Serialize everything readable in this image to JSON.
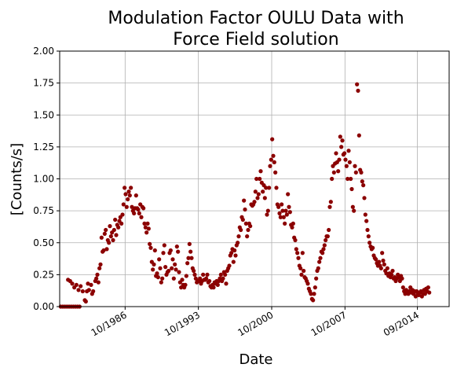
{
  "chart_data": {
    "type": "scatter",
    "title_lines": [
      "Modulation Factor OULU Data with",
      "Force Field solution"
    ],
    "xlabel": "Date",
    "ylabel": "[Counts/s]",
    "x_unit": "year",
    "xlim": [
      1980.5,
      2017.7
    ],
    "ylim": [
      0,
      2.0
    ],
    "grid": true,
    "marker_color": "#8b0000",
    "x_ticks": [
      {
        "value": 1986.75,
        "label": "10/1986"
      },
      {
        "value": 1993.75,
        "label": "10/1993"
      },
      {
        "value": 2000.75,
        "label": "10/2000"
      },
      {
        "value": 2007.75,
        "label": "10/2007"
      },
      {
        "value": 2014.67,
        "label": "09/2014"
      }
    ],
    "y_ticks": [
      {
        "value": 0.0,
        "label": "0.00"
      },
      {
        "value": 0.25,
        "label": "0.25"
      },
      {
        "value": 0.5,
        "label": "0.50"
      },
      {
        "value": 0.75,
        "label": "0.75"
      },
      {
        "value": 1.0,
        "label": "1.00"
      },
      {
        "value": 1.25,
        "label": "1.25"
      },
      {
        "value": 1.5,
        "label": "1.50"
      },
      {
        "value": 1.75,
        "label": "1.75"
      },
      {
        "value": 2.0,
        "label": "2.00"
      }
    ],
    "points": [
      [
        1980.6,
        0.0
      ],
      [
        1980.8,
        0.0
      ],
      [
        1981.0,
        0.0
      ],
      [
        1981.2,
        0.0
      ],
      [
        1981.4,
        0.0
      ],
      [
        1981.6,
        0.0
      ],
      [
        1981.8,
        0.0
      ],
      [
        1982.0,
        0.0
      ],
      [
        1982.2,
        0.0
      ],
      [
        1982.4,
        0.0
      ],
      [
        1981.3,
        0.21
      ],
      [
        1981.5,
        0.2
      ],
      [
        1981.7,
        0.18
      ],
      [
        1981.9,
        0.15
      ],
      [
        1982.1,
        0.17
      ],
      [
        1982.3,
        0.13
      ],
      [
        1982.5,
        0.16
      ],
      [
        1982.7,
        0.12
      ],
      [
        1982.9,
        0.05
      ],
      [
        1983.0,
        0.04
      ],
      [
        1983.1,
        0.12
      ],
      [
        1983.2,
        0.18
      ],
      [
        1983.3,
        0.13
      ],
      [
        1983.5,
        0.17
      ],
      [
        1983.6,
        0.1
      ],
      [
        1983.7,
        0.12
      ],
      [
        1983.9,
        0.2
      ],
      [
        1984.0,
        0.22
      ],
      [
        1984.1,
        0.25
      ],
      [
        1984.2,
        0.19
      ],
      [
        1984.3,
        0.3
      ],
      [
        1984.4,
        0.33
      ],
      [
        1984.5,
        0.54
      ],
      [
        1984.6,
        0.43
      ],
      [
        1984.7,
        0.44
      ],
      [
        1984.8,
        0.57
      ],
      [
        1984.9,
        0.6
      ],
      [
        1985.0,
        0.45
      ],
      [
        1985.1,
        0.52
      ],
      [
        1985.2,
        0.5
      ],
      [
        1985.3,
        0.63
      ],
      [
        1985.4,
        0.55
      ],
      [
        1985.5,
        0.58
      ],
      [
        1985.6,
        0.52
      ],
      [
        1985.7,
        0.6
      ],
      [
        1985.8,
        0.68
      ],
      [
        1985.9,
        0.56
      ],
      [
        1986.0,
        0.64
      ],
      [
        1986.1,
        0.62
      ],
      [
        1986.2,
        0.67
      ],
      [
        1986.3,
        0.7
      ],
      [
        1986.4,
        0.65
      ],
      [
        1986.5,
        0.72
      ],
      [
        1986.6,
        0.8
      ],
      [
        1986.7,
        0.93
      ],
      [
        1986.8,
        0.88
      ],
      [
        1986.9,
        0.78
      ],
      [
        1987.0,
        0.84
      ],
      [
        1987.1,
        0.9
      ],
      [
        1987.2,
        0.87
      ],
      [
        1987.3,
        0.93
      ],
      [
        1987.4,
        0.78
      ],
      [
        1987.5,
        0.75
      ],
      [
        1987.6,
        0.73
      ],
      [
        1987.7,
        0.77
      ],
      [
        1987.8,
        0.87
      ],
      [
        1987.9,
        0.77
      ],
      [
        1988.0,
        0.76
      ],
      [
        1988.1,
        0.73
      ],
      [
        1988.2,
        0.8
      ],
      [
        1988.3,
        0.7
      ],
      [
        1988.4,
        0.78
      ],
      [
        1988.5,
        0.77
      ],
      [
        1988.6,
        0.65
      ],
      [
        1988.7,
        0.62
      ],
      [
        1988.8,
        0.58
      ],
      [
        1988.9,
        0.65
      ],
      [
        1989.0,
        0.61
      ],
      [
        1989.1,
        0.49
      ],
      [
        1989.2,
        0.46
      ],
      [
        1989.3,
        0.35
      ],
      [
        1989.4,
        0.29
      ],
      [
        1989.5,
        0.33
      ],
      [
        1989.6,
        0.44
      ],
      [
        1989.7,
        0.24
      ],
      [
        1989.8,
        0.26
      ],
      [
        1989.9,
        0.23
      ],
      [
        1990.0,
        0.37
      ],
      [
        1990.1,
        0.3
      ],
      [
        1990.2,
        0.19
      ],
      [
        1990.3,
        0.22
      ],
      [
        1990.4,
        0.42
      ],
      [
        1990.5,
        0.48
      ],
      [
        1990.6,
        0.31
      ],
      [
        1990.7,
        0.25
      ],
      [
        1990.8,
        0.27
      ],
      [
        1990.9,
        0.28
      ],
      [
        1991.0,
        0.42
      ],
      [
        1991.1,
        0.44
      ],
      [
        1991.2,
        0.3
      ],
      [
        1991.3,
        0.37
      ],
      [
        1991.4,
        0.22
      ],
      [
        1991.5,
        0.33
      ],
      [
        1991.6,
        0.29
      ],
      [
        1991.7,
        0.47
      ],
      [
        1991.8,
        0.43
      ],
      [
        1991.9,
        0.27
      ],
      [
        1992.0,
        0.19
      ],
      [
        1992.1,
        0.15
      ],
      [
        1992.2,
        0.21
      ],
      [
        1992.3,
        0.17
      ],
      [
        1992.4,
        0.15
      ],
      [
        1992.5,
        0.17
      ],
      [
        1992.6,
        0.24
      ],
      [
        1992.7,
        0.34
      ],
      [
        1992.8,
        0.38
      ],
      [
        1992.9,
        0.49
      ],
      [
        1993.0,
        0.43
      ],
      [
        1993.1,
        0.38
      ],
      [
        1993.2,
        0.3
      ],
      [
        1993.3,
        0.28
      ],
      [
        1993.4,
        0.25
      ],
      [
        1993.5,
        0.22
      ],
      [
        1993.6,
        0.19
      ],
      [
        1993.7,
        0.2
      ],
      [
        1993.8,
        0.2
      ],
      [
        1993.9,
        0.22
      ],
      [
        1994.0,
        0.18
      ],
      [
        1994.1,
        0.2
      ],
      [
        1994.2,
        0.25
      ],
      [
        1994.3,
        0.21
      ],
      [
        1994.4,
        0.21
      ],
      [
        1994.5,
        0.22
      ],
      [
        1994.6,
        0.25
      ],
      [
        1994.7,
        0.19
      ],
      [
        1994.8,
        0.2
      ],
      [
        1994.9,
        0.16
      ],
      [
        1995.0,
        0.15
      ],
      [
        1995.1,
        0.17
      ],
      [
        1995.2,
        0.15
      ],
      [
        1995.3,
        0.19
      ],
      [
        1995.4,
        0.18
      ],
      [
        1995.5,
        0.2
      ],
      [
        1995.6,
        0.17
      ],
      [
        1995.7,
        0.2
      ],
      [
        1995.8,
        0.22
      ],
      [
        1995.9,
        0.25
      ],
      [
        1996.0,
        0.2
      ],
      [
        1996.1,
        0.22
      ],
      [
        1996.2,
        0.27
      ],
      [
        1996.3,
        0.25
      ],
      [
        1996.4,
        0.18
      ],
      [
        1996.5,
        0.28
      ],
      [
        1996.6,
        0.3
      ],
      [
        1996.7,
        0.32
      ],
      [
        1996.8,
        0.4
      ],
      [
        1996.9,
        0.42
      ],
      [
        1997.0,
        0.45
      ],
      [
        1997.1,
        0.35
      ],
      [
        1997.2,
        0.44
      ],
      [
        1997.3,
        0.4
      ],
      [
        1997.4,
        0.48
      ],
      [
        1997.5,
        0.5
      ],
      [
        1997.6,
        0.55
      ],
      [
        1997.7,
        0.62
      ],
      [
        1997.8,
        0.6
      ],
      [
        1997.9,
        0.7
      ],
      [
        1998.0,
        0.68
      ],
      [
        1998.1,
        0.83
      ],
      [
        1998.2,
        0.76
      ],
      [
        1998.3,
        0.65
      ],
      [
        1998.4,
        0.55
      ],
      [
        1998.5,
        0.6
      ],
      [
        1998.6,
        0.65
      ],
      [
        1998.7,
        0.63
      ],
      [
        1998.8,
        0.8
      ],
      [
        1998.9,
        0.79
      ],
      [
        1999.0,
        0.8
      ],
      [
        1999.1,
        0.82
      ],
      [
        1999.2,
        0.9
      ],
      [
        1999.3,
        1.0
      ],
      [
        1999.4,
        0.85
      ],
      [
        1999.5,
        0.88
      ],
      [
        1999.6,
        1.0
      ],
      [
        1999.7,
        1.06
      ],
      [
        1999.8,
        0.97
      ],
      [
        1999.9,
        0.9
      ],
      [
        2000.0,
        0.95
      ],
      [
        2000.1,
        0.85
      ],
      [
        2000.2,
        0.93
      ],
      [
        2000.3,
        0.72
      ],
      [
        2000.4,
        0.75
      ],
      [
        2000.5,
        0.93
      ],
      [
        2000.6,
        1.1
      ],
      [
        2000.7,
        1.15
      ],
      [
        2000.8,
        1.31
      ],
      [
        2000.9,
        1.18
      ],
      [
        2001.0,
        1.13
      ],
      [
        2001.1,
        1.05
      ],
      [
        2001.2,
        0.93
      ],
      [
        2001.3,
        0.8
      ],
      [
        2001.4,
        0.78
      ],
      [
        2001.5,
        0.73
      ],
      [
        2001.6,
        0.7
      ],
      [
        2001.7,
        0.8
      ],
      [
        2001.8,
        0.75
      ],
      [
        2001.9,
        0.7
      ],
      [
        2002.0,
        0.65
      ],
      [
        2002.1,
        0.75
      ],
      [
        2002.2,
        0.72
      ],
      [
        2002.3,
        0.88
      ],
      [
        2002.4,
        0.78
      ],
      [
        2002.5,
        0.74
      ],
      [
        2002.6,
        0.64
      ],
      [
        2002.7,
        0.62
      ],
      [
        2002.8,
        0.65
      ],
      [
        2002.9,
        0.54
      ],
      [
        2003.0,
        0.52
      ],
      [
        2003.1,
        0.45
      ],
      [
        2003.2,
        0.42
      ],
      [
        2003.3,
        0.38
      ],
      [
        2003.4,
        0.32
      ],
      [
        2003.5,
        0.3
      ],
      [
        2003.6,
        0.25
      ],
      [
        2003.7,
        0.42
      ],
      [
        2003.8,
        0.28
      ],
      [
        2003.9,
        0.23
      ],
      [
        2004.0,
        0.22
      ],
      [
        2004.1,
        0.2
      ],
      [
        2004.2,
        0.18
      ],
      [
        2004.3,
        0.14
      ],
      [
        2004.4,
        0.12
      ],
      [
        2004.5,
        0.1
      ],
      [
        2004.6,
        0.06
      ],
      [
        2004.7,
        0.05
      ],
      [
        2004.8,
        0.1
      ],
      [
        2004.9,
        0.15
      ],
      [
        2005.0,
        0.22
      ],
      [
        2005.1,
        0.28
      ],
      [
        2005.2,
        0.3
      ],
      [
        2005.3,
        0.35
      ],
      [
        2005.4,
        0.38
      ],
      [
        2005.5,
        0.43
      ],
      [
        2005.6,
        0.42
      ],
      [
        2005.7,
        0.45
      ],
      [
        2005.8,
        0.48
      ],
      [
        2005.9,
        0.52
      ],
      [
        2006.0,
        0.55
      ],
      [
        2006.1,
        0.55
      ],
      [
        2006.2,
        0.6
      ],
      [
        2006.3,
        0.78
      ],
      [
        2006.4,
        0.82
      ],
      [
        2006.5,
        1.0
      ],
      [
        2006.6,
        1.1
      ],
      [
        2006.7,
        1.05
      ],
      [
        2006.8,
        1.12
      ],
      [
        2006.9,
        1.2
      ],
      [
        2007.0,
        1.13
      ],
      [
        2007.1,
        1.06
      ],
      [
        2007.2,
        1.15
      ],
      [
        2007.3,
        1.33
      ],
      [
        2007.4,
        1.25
      ],
      [
        2007.5,
        1.3
      ],
      [
        2007.6,
        1.19
      ],
      [
        2007.7,
        1.2
      ],
      [
        2007.8,
        1.15
      ],
      [
        2007.9,
        1.1
      ],
      [
        2008.0,
        1.0
      ],
      [
        2008.1,
        1.22
      ],
      [
        2008.2,
        1.13
      ],
      [
        2008.3,
        1.0
      ],
      [
        2008.4,
        0.92
      ],
      [
        2008.5,
        0.78
      ],
      [
        2008.6,
        0.75
      ],
      [
        2008.7,
        1.1
      ],
      [
        2008.8,
        1.05
      ],
      [
        2008.9,
        1.74
      ],
      [
        2009.0,
        1.69
      ],
      [
        2009.1,
        1.34
      ],
      [
        2009.2,
        1.07
      ],
      [
        2009.3,
        1.05
      ],
      [
        2009.4,
        0.98
      ],
      [
        2009.5,
        0.95
      ],
      [
        2009.6,
        0.85
      ],
      [
        2009.7,
        0.72
      ],
      [
        2009.8,
        0.67
      ],
      [
        2009.9,
        0.6
      ],
      [
        2010.0,
        0.55
      ],
      [
        2010.1,
        0.5
      ],
      [
        2010.2,
        0.47
      ],
      [
        2010.3,
        0.45
      ],
      [
        2010.4,
        0.46
      ],
      [
        2010.5,
        0.4
      ],
      [
        2010.6,
        0.38
      ],
      [
        2010.7,
        0.37
      ],
      [
        2010.8,
        0.34
      ],
      [
        2010.9,
        0.32
      ],
      [
        2011.0,
        0.35
      ],
      [
        2011.1,
        0.32
      ],
      [
        2011.2,
        0.3
      ],
      [
        2011.3,
        0.42
      ],
      [
        2011.4,
        0.36
      ],
      [
        2011.5,
        0.33
      ],
      [
        2011.6,
        0.28
      ],
      [
        2011.7,
        0.26
      ],
      [
        2011.8,
        0.3
      ],
      [
        2011.9,
        0.24
      ],
      [
        2012.0,
        0.26
      ],
      [
        2012.1,
        0.23
      ],
      [
        2012.2,
        0.25
      ],
      [
        2012.3,
        0.28
      ],
      [
        2012.4,
        0.22
      ],
      [
        2012.5,
        0.23
      ],
      [
        2012.6,
        0.2
      ],
      [
        2012.7,
        0.22
      ],
      [
        2012.8,
        0.25
      ],
      [
        2012.9,
        0.23
      ],
      [
        2013.0,
        0.2
      ],
      [
        2013.1,
        0.24
      ],
      [
        2013.2,
        0.22
      ],
      [
        2013.3,
        0.15
      ],
      [
        2013.4,
        0.12
      ],
      [
        2013.5,
        0.1
      ],
      [
        2013.6,
        0.13
      ],
      [
        2013.7,
        0.11
      ],
      [
        2013.8,
        0.1
      ],
      [
        2013.9,
        0.12
      ],
      [
        2014.0,
        0.15
      ],
      [
        2014.1,
        0.11
      ],
      [
        2014.2,
        0.13
      ],
      [
        2014.3,
        0.1
      ],
      [
        2014.4,
        0.12
      ],
      [
        2014.5,
        0.08
      ],
      [
        2014.6,
        0.12
      ],
      [
        2014.7,
        0.1
      ],
      [
        2014.8,
        0.09
      ],
      [
        2014.9,
        0.11
      ],
      [
        2015.0,
        0.12
      ],
      [
        2015.1,
        0.08
      ],
      [
        2015.2,
        0.1
      ],
      [
        2015.3,
        0.13
      ],
      [
        2015.4,
        0.1
      ],
      [
        2015.5,
        0.14
      ],
      [
        2015.6,
        0.12
      ],
      [
        2015.7,
        0.15
      ],
      [
        2015.8,
        0.11
      ]
    ]
  }
}
